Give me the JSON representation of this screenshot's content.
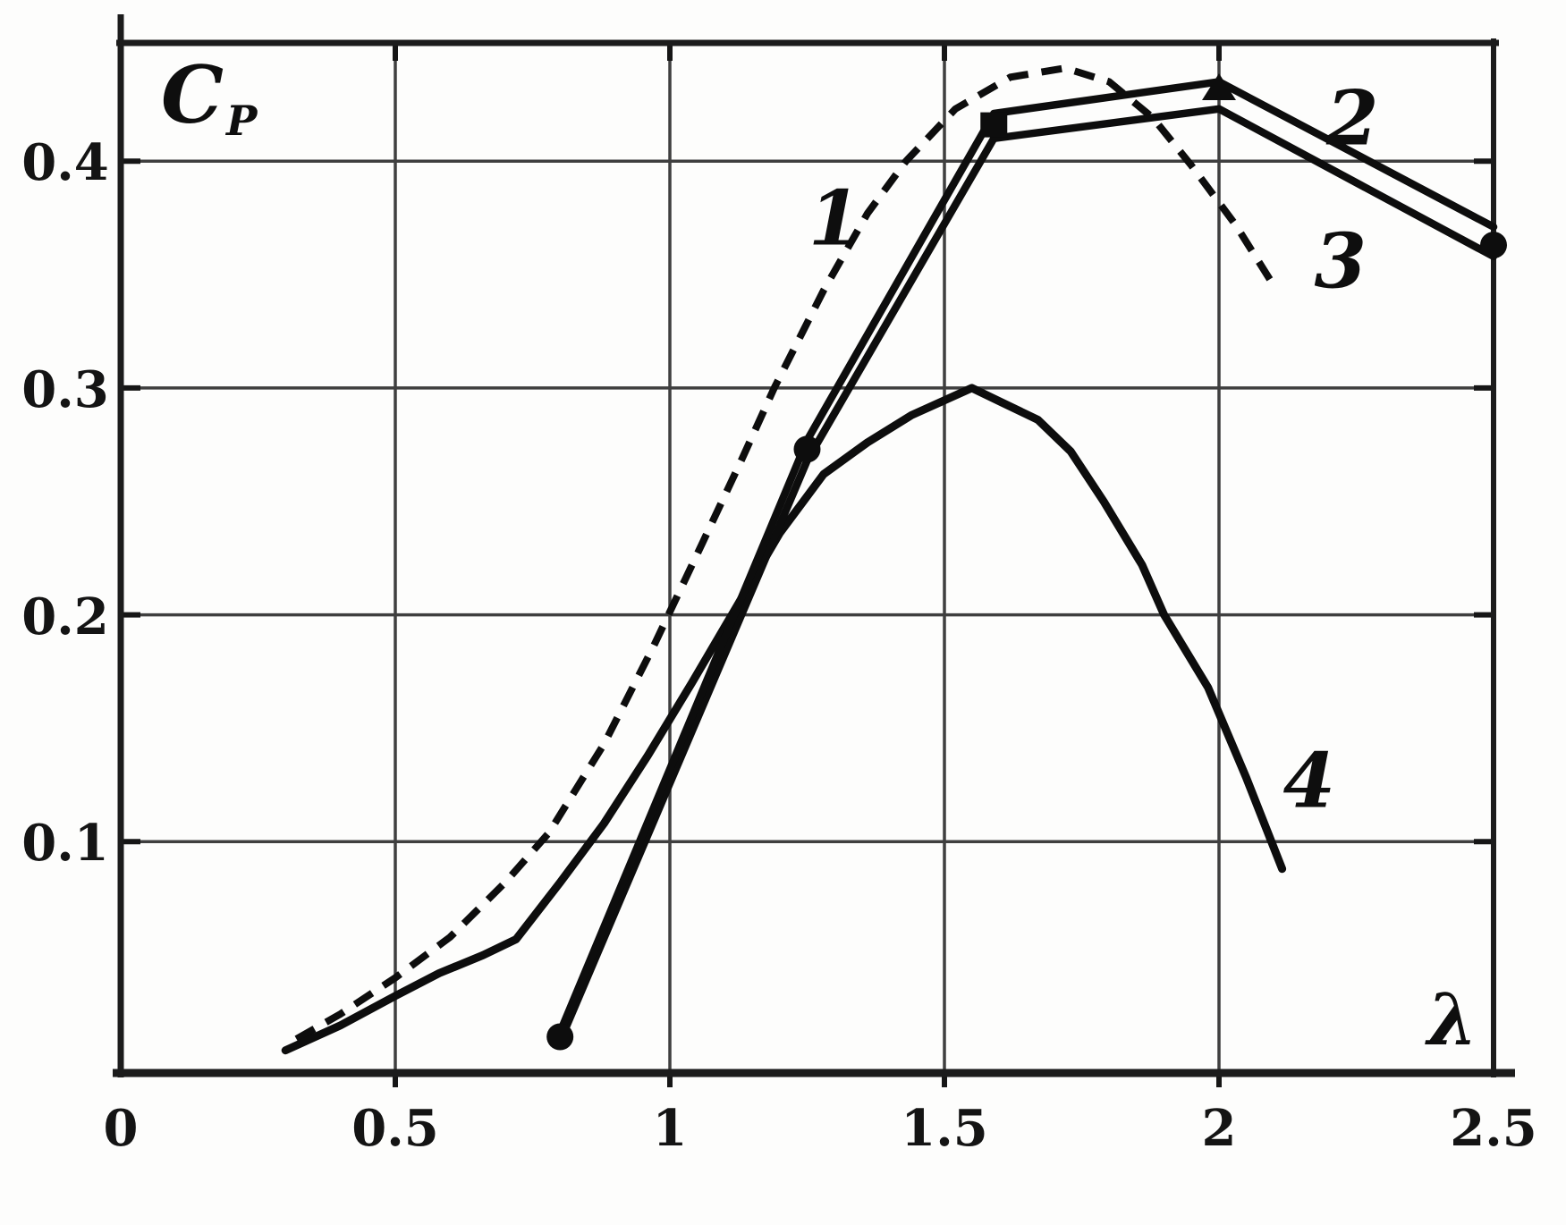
{
  "chart_data": {
    "type": "line",
    "title": "",
    "xlabel": "λ",
    "ylabel": "C_P",
    "ylabel_main": "C",
    "ylabel_sub": "P",
    "xlim": [
      0,
      2.5
    ],
    "ylim": [
      0,
      0.453
    ],
    "grid": true,
    "background": "#fdfdfc",
    "ink_color": "#0d0d0d",
    "grid_color": "#3f3f3f",
    "x_ticks": [
      {
        "v": 0,
        "label": "0"
      },
      {
        "v": 0.5,
        "label": "0.5"
      },
      {
        "v": 1,
        "label": "1"
      },
      {
        "v": 1.5,
        "label": "1.5"
      },
      {
        "v": 2,
        "label": "2"
      },
      {
        "v": 2.5,
        "label": "2.5"
      }
    ],
    "y_ticks": [
      {
        "v": 0.1,
        "label": "0.1"
      },
      {
        "v": 0.2,
        "label": "0.2"
      },
      {
        "v": 0.3,
        "label": "0.3"
      },
      {
        "v": 0.4,
        "label": "0.4"
      }
    ],
    "series": [
      {
        "id": "1",
        "label": "1",
        "line": "dashed",
        "points": [
          [
            0.32,
            0.013
          ],
          [
            0.4,
            0.024
          ],
          [
            0.5,
            0.04
          ],
          [
            0.6,
            0.058
          ],
          [
            0.7,
            0.082
          ],
          [
            0.78,
            0.104
          ],
          [
            0.88,
            0.143
          ],
          [
            0.97,
            0.186
          ],
          [
            1.06,
            0.232
          ],
          [
            1.13,
            0.268
          ],
          [
            1.19,
            0.3
          ],
          [
            1.28,
            0.343
          ],
          [
            1.36,
            0.377
          ],
          [
            1.43,
            0.4
          ],
          [
            1.52,
            0.423
          ],
          [
            1.62,
            0.437
          ],
          [
            1.72,
            0.441
          ],
          [
            1.8,
            0.435
          ],
          [
            1.88,
            0.419
          ],
          [
            1.95,
            0.398
          ],
          [
            2.03,
            0.372
          ],
          [
            2.1,
            0.345
          ]
        ]
      },
      {
        "id": "2",
        "label": "2",
        "line": "solid-thick",
        "points": [
          [
            0.8,
            0.016
          ],
          [
            1.25,
            0.277
          ],
          [
            1.59,
            0.421
          ],
          [
            2.0,
            0.435
          ],
          [
            2.5,
            0.371
          ]
        ]
      },
      {
        "id": "3",
        "label": "3",
        "line": "solid-thick",
        "points": [
          [
            0.8,
            0.012
          ],
          [
            1.25,
            0.268
          ],
          [
            1.59,
            0.41
          ],
          [
            2.0,
            0.423
          ],
          [
            2.5,
            0.358
          ]
        ]
      },
      {
        "id": "4",
        "label": "4",
        "line": "solid",
        "points": [
          [
            0.3,
            0.008
          ],
          [
            0.4,
            0.019
          ],
          [
            0.5,
            0.032
          ],
          [
            0.58,
            0.042
          ],
          [
            0.66,
            0.05
          ],
          [
            0.72,
            0.057
          ],
          [
            0.8,
            0.082
          ],
          [
            0.88,
            0.108
          ],
          [
            0.96,
            0.138
          ],
          [
            1.04,
            0.17
          ],
          [
            1.12,
            0.203
          ],
          [
            1.2,
            0.236
          ],
          [
            1.28,
            0.262
          ],
          [
            1.36,
            0.276
          ],
          [
            1.44,
            0.288
          ],
          [
            1.55,
            0.3
          ],
          [
            1.61,
            0.293
          ],
          [
            1.67,
            0.286
          ],
          [
            1.73,
            0.272
          ],
          [
            1.79,
            0.25
          ],
          [
            1.86,
            0.222
          ],
          [
            1.9,
            0.2
          ],
          [
            1.98,
            0.168
          ],
          [
            2.05,
            0.128
          ],
          [
            2.115,
            0.088
          ]
        ]
      }
    ],
    "markers": [
      {
        "x": 0.8,
        "y": 0.014,
        "shape": "circle"
      },
      {
        "x": 1.25,
        "y": 0.273,
        "shape": "circle"
      },
      {
        "x": 1.59,
        "y": 0.416,
        "shape": "square"
      },
      {
        "x": 2.0,
        "y": 0.432,
        "shape": "triangle"
      },
      {
        "x": 2.5,
        "y": 0.363,
        "shape": "circle"
      }
    ],
    "curve_labels": [
      {
        "text": "1",
        "x": 1.3,
        "y": 0.375
      },
      {
        "text": "2",
        "x": 2.243,
        "y": 0.419
      },
      {
        "text": "3",
        "x": 2.221,
        "y": 0.356
      },
      {
        "text": "4",
        "x": 2.164,
        "y": 0.127
      }
    ]
  }
}
